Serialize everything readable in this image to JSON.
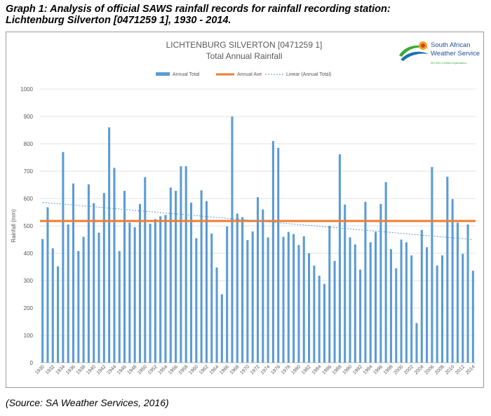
{
  "caption": {
    "line1": "Graph 1: Analysis of official SAWS rainfall records for rainfall recording station:",
    "line2": "Lichtenburg Silverton [0471259 1], 1930 - 2014."
  },
  "source": "(Source: SA Weather Services, 2016)",
  "logo": {
    "line1": "South African",
    "line2": "Weather Service",
    "cert": "ISO 9001 Certified Organisation",
    "colors": {
      "text": "#1f4e9a",
      "swoosh_green": "#3aa935",
      "swoosh_blue": "#1d6fb8",
      "sun": "#f2a31c",
      "sun_red": "#e03a2f"
    }
  },
  "chart_data": {
    "type": "bar",
    "title": "LICHTENBURG SILVERTON [0471259 1]",
    "subtitle": "Total Annual Rainfall",
    "xlabel": "",
    "ylabel": "Rainfall (mm)",
    "ylim": [
      0,
      1000
    ],
    "yticks": [
      "0",
      "100",
      "200",
      "300",
      "400",
      "500",
      "600",
      "700",
      "800",
      "900",
      "1000"
    ],
    "grid": true,
    "legend_position": "top",
    "legend": [
      "Annual Total",
      "Annual Ave",
      "Linear (Annual Total)"
    ],
    "x_tick_labels": [
      "1930",
      "1932",
      "1934",
      "1936",
      "1938",
      "1940",
      "1942",
      "1944",
      "1946",
      "1948",
      "1950",
      "1952",
      "1954",
      "1956",
      "1958",
      "1960",
      "1962",
      "1964",
      "1966",
      "1968",
      "1970",
      "1972",
      "1974",
      "1976",
      "1978",
      "1980",
      "1982",
      "1984",
      "1986",
      "1988",
      "1990",
      "1992",
      "1994",
      "1996",
      "1998",
      "2000",
      "2002",
      "2004",
      "2006",
      "2008",
      "2010",
      "2012",
      "2014"
    ],
    "categories": [
      "1930",
      "1931",
      "1932",
      "1933",
      "1934",
      "1935",
      "1936",
      "1937",
      "1938",
      "1939",
      "1940",
      "1941",
      "1942",
      "1943",
      "1944",
      "1945",
      "1946",
      "1947",
      "1948",
      "1949",
      "1950",
      "1951",
      "1952",
      "1953",
      "1954",
      "1955",
      "1956",
      "1957",
      "1958",
      "1959",
      "1960",
      "1961",
      "1962",
      "1963",
      "1964",
      "1965",
      "1966",
      "1967",
      "1968",
      "1969",
      "1970",
      "1971",
      "1972",
      "1973",
      "1974",
      "1975",
      "1976",
      "1977",
      "1978",
      "1979",
      "1980",
      "1981",
      "1982",
      "1983",
      "1984",
      "1985",
      "1986",
      "1987",
      "1988",
      "1989",
      "1990",
      "1991",
      "1992",
      "1993",
      "1994",
      "1995",
      "1996",
      "1997",
      "1998",
      "1999",
      "2000",
      "2001",
      "2002",
      "2003",
      "2004",
      "2005",
      "2006",
      "2007",
      "2008",
      "2009",
      "2010",
      "2011",
      "2012",
      "2013",
      "2014"
    ],
    "series": [
      {
        "name": "Annual Total",
        "color": "#5b9bd5",
        "values": [
          452,
          568,
          418,
          352,
          770,
          505,
          655,
          408,
          460,
          652,
          583,
          475,
          620,
          860,
          712,
          408,
          628,
          512,
          495,
          580,
          678,
          508,
          525,
          535,
          540,
          640,
          628,
          718,
          718,
          585,
          455,
          630,
          590,
          472,
          348,
          250,
          498,
          900,
          545,
          532,
          448,
          480,
          605,
          560,
          458,
          810,
          785,
          460,
          478,
          470,
          430,
          462,
          400,
          355,
          318,
          288,
          500,
          372,
          762,
          578,
          458,
          432,
          340,
          588,
          440,
          478,
          580,
          660,
          415,
          345,
          450,
          440,
          392,
          145,
          485,
          422,
          715,
          355,
          392,
          680,
          598,
          512,
          398,
          505,
          336
        ]
      },
      {
        "name": "Annual Ave",
        "color": "#ed7d31",
        "value": 518
      },
      {
        "name": "Linear (Annual Total)",
        "color": "#5b9bd5",
        "start": 586,
        "end": 450
      }
    ]
  }
}
